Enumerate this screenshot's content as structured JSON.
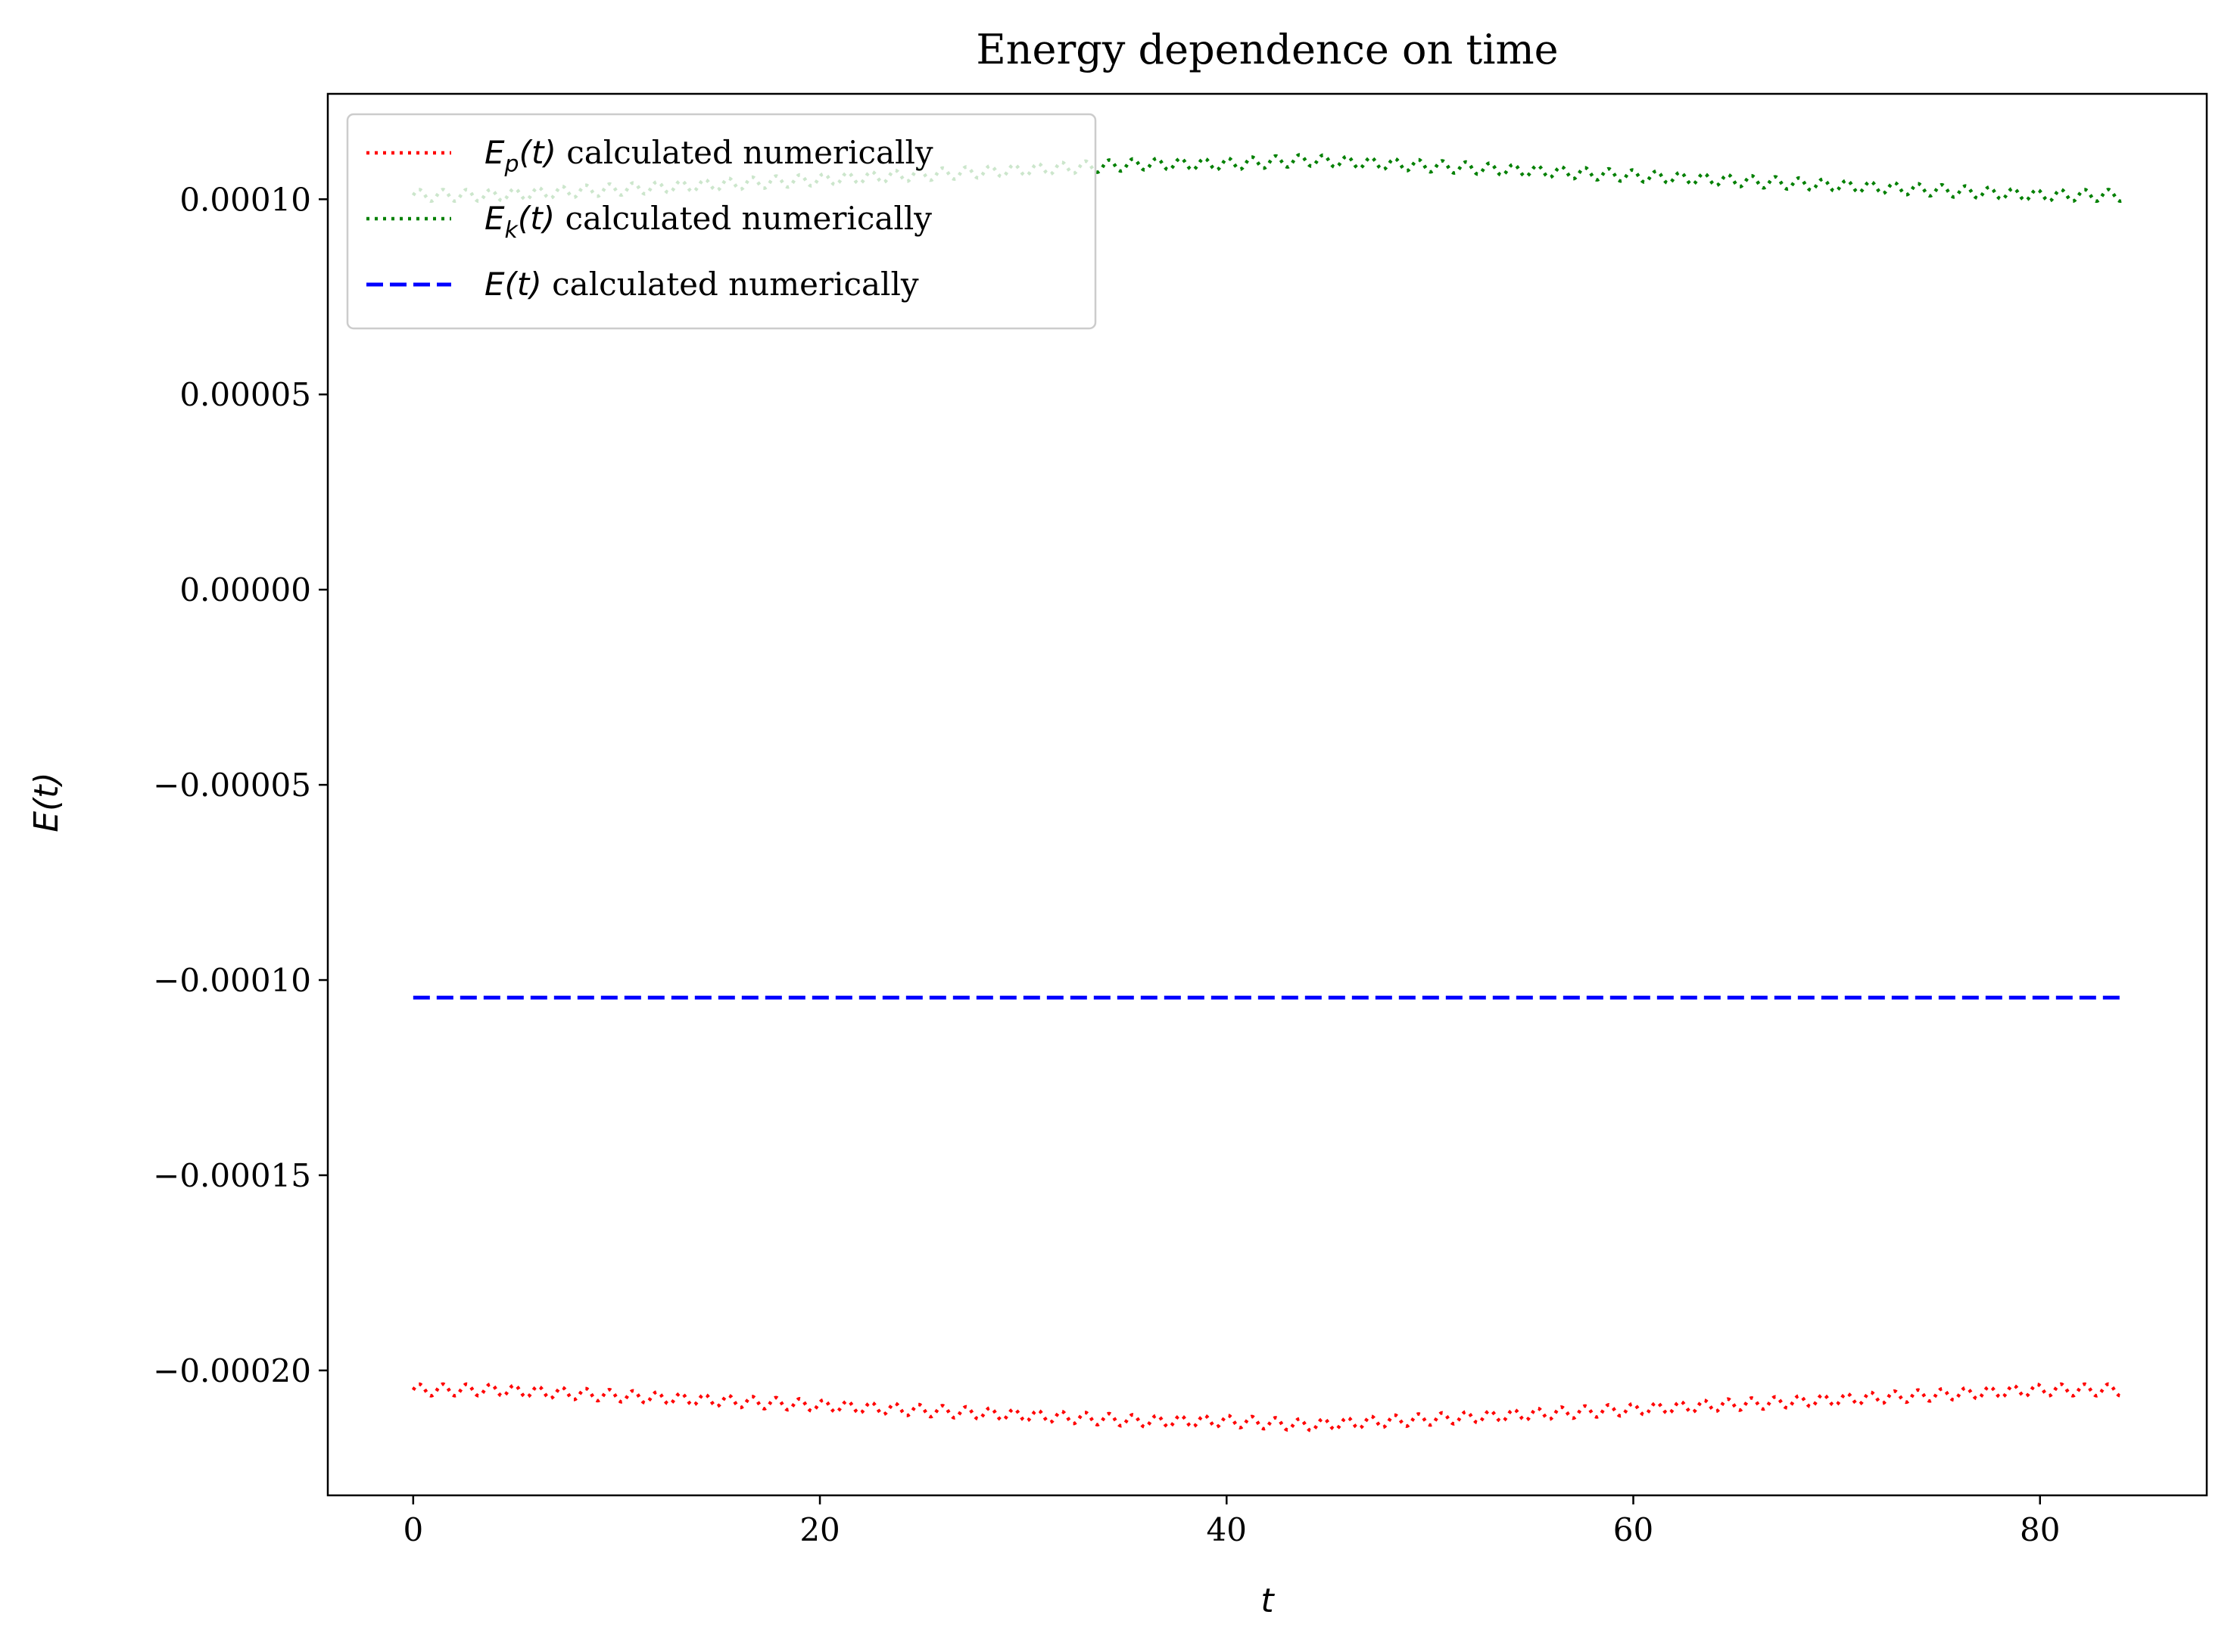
{
  "chart_data": {
    "type": "line",
    "title": "Energy dependence on time",
    "xlabel": "t",
    "ylabel": "E(t)",
    "xlim": [
      -4.2,
      88.2
    ],
    "ylim": [
      -0.000232,
      0.000127
    ],
    "xticks": [
      0,
      20,
      40,
      60,
      80
    ],
    "xtick_labels": [
      "0",
      "20",
      "40",
      "60",
      "80"
    ],
    "yticks": [
      0.0001,
      5e-05,
      0.0,
      -5e-05,
      -0.0001,
      -0.00015,
      -0.0002
    ],
    "ytick_labels": [
      "0.00010",
      "0.00005",
      "0.00000",
      "−0.00005",
      "−0.00010",
      "−0.00015",
      "−0.00020"
    ],
    "grid": false,
    "legend": "top-left",
    "series": [
      {
        "name": "E_p(t) calculated numerically",
        "legend_math": "E",
        "legend_sub": "p",
        "legend_text": " calculated numerically",
        "color": "#ff0000",
        "style": "dotted",
        "x": [
          0,
          4,
          8,
          12,
          16,
          20,
          24,
          28,
          32,
          36,
          40,
          44,
          48,
          52,
          56,
          60,
          64,
          68,
          72,
          76,
          80,
          84
        ],
        "y": [
          -0.000205,
          -0.000205,
          -0.000206,
          -0.000207,
          -0.000208,
          -0.000209,
          -0.00021,
          -0.000211,
          -0.000212,
          -0.000213,
          -0.000213,
          -0.000214,
          -0.000213,
          -0.000212,
          -0.000211,
          -0.00021,
          -0.000209,
          -0.000208,
          -0.000207,
          -0.000206,
          -0.000205,
          -0.000205
        ],
        "oscillation": {
          "amplitude": 1.5e-06,
          "period": 1.17
        }
      },
      {
        "name": "E_k(t) calculated numerically",
        "legend_math": "E",
        "legend_sub": "k",
        "legend_text": " calculated numerically",
        "color": "#008000",
        "style": "dotted",
        "x": [
          0,
          4,
          8,
          12,
          16,
          20,
          24,
          28,
          32,
          36,
          40,
          44,
          48,
          52,
          56,
          60,
          64,
          68,
          72,
          76,
          80,
          84
        ],
        "y": [
          0.000101,
          0.000101,
          0.000102,
          0.000103,
          0.000104,
          0.000105,
          0.000106,
          0.000107,
          0.000108,
          0.000109,
          0.000109,
          0.00011,
          0.000109,
          0.000108,
          0.000107,
          0.000106,
          0.000105,
          0.000104,
          0.000103,
          0.000102,
          0.000101,
          0.000101
        ],
        "oscillation": {
          "amplitude": 1.5e-06,
          "period": 1.17
        }
      },
      {
        "name": "E(t) calculated numerically",
        "legend_math": "E",
        "legend_sub": "",
        "legend_text": " calculated numerically",
        "color": "#0000ff",
        "style": "dashed",
        "x": [
          0,
          84
        ],
        "y": [
          -0.0001045,
          -0.0001045
        ]
      }
    ]
  }
}
